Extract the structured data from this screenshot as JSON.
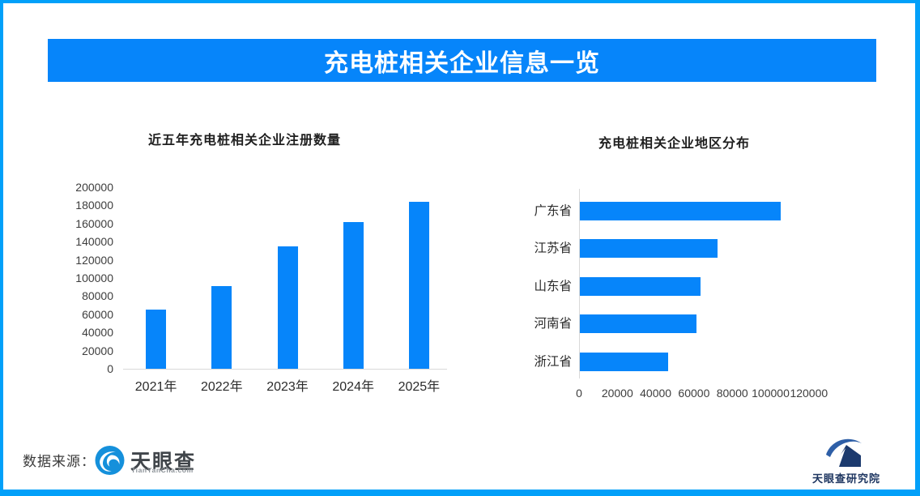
{
  "banner": {
    "title": "充电桩相关企业信息一览"
  },
  "colors": {
    "accent": "#0685FA",
    "border": "#02A0F9",
    "axis_line": "#D9D9D9",
    "tyc_logo_blue": "#1590DB",
    "institute_navy": "#1C3A6E",
    "institute_swoosh_blue": "#2E5FA7"
  },
  "footer": {
    "source_label": "数据来源：",
    "tianyancha_name": "天眼查",
    "tianyancha_domain": "TianYanCha.com",
    "institute_name": "天眼查研究院"
  },
  "icons": {
    "tianyancha_logo": "tianyancha-eye-logo",
    "institute_logo": "tianyancha-institute-mountain-logo"
  },
  "chart_data": [
    {
      "type": "bar",
      "orientation": "vertical",
      "title": "近五年充电桩相关企业注册数量",
      "categories": [
        "2021年",
        "2022年",
        "2023年",
        "2024年",
        "2025年"
      ],
      "values": [
        65000,
        91000,
        135000,
        162000,
        184000
      ],
      "xlabel": "",
      "ylabel": "",
      "ylim": [
        0,
        200000
      ],
      "ytick_step": 20000,
      "grid": false,
      "legend": false,
      "bar_color": "#0685FA"
    },
    {
      "type": "bar",
      "orientation": "horizontal",
      "title": "充电桩相关企业地区分布",
      "categories": [
        "广东省",
        "江苏省",
        "山东省",
        "河南省",
        "浙江省"
      ],
      "values": [
        105000,
        72000,
        63000,
        61000,
        46000
      ],
      "xlabel": "",
      "ylabel": "",
      "xlim": [
        0,
        120000
      ],
      "xtick_step": 20000,
      "grid": false,
      "legend": false,
      "bar_color": "#0685FA"
    }
  ]
}
